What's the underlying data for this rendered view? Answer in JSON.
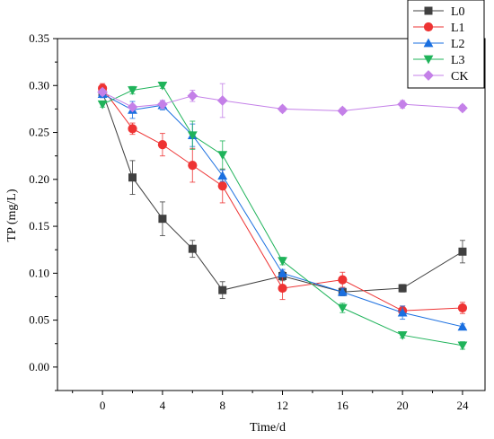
{
  "chart_data": {
    "type": "line",
    "xlabel": "Time/d",
    "ylabel": "TP (mg/L)",
    "x": [
      0,
      2,
      4,
      6,
      8,
      12,
      16,
      20,
      24
    ],
    "x_ticks": [
      "0",
      "4",
      "8",
      "12",
      "16",
      "20",
      "24"
    ],
    "y_ticks": [
      "0.00",
      "0.05",
      "0.10",
      "0.15",
      "0.20",
      "0.25",
      "0.30",
      "0.35"
    ],
    "xlim": [
      -3,
      25.5
    ],
    "ylim": [
      -0.025,
      0.35
    ],
    "grid": false,
    "legend_position": "top-right",
    "series": [
      {
        "name": "L0",
        "color": "#404040",
        "marker": "square",
        "values": [
          0.293,
          0.202,
          0.158,
          0.126,
          0.082,
          0.097,
          0.08,
          0.084,
          0.123
        ],
        "errors": [
          0.005,
          0.018,
          0.018,
          0.009,
          0.009,
          0.005,
          0.004,
          0.004,
          0.012
        ]
      },
      {
        "name": "L1",
        "color": "#ee3333",
        "marker": "circle",
        "values": [
          0.297,
          0.254,
          0.237,
          0.215,
          0.193,
          0.084,
          0.093,
          0.06,
          0.063
        ],
        "errors": [
          0.005,
          0.006,
          0.012,
          0.018,
          0.018,
          0.012,
          0.008,
          0.005,
          0.006
        ]
      },
      {
        "name": "L2",
        "color": "#1a6fe0",
        "marker": "triangle-up",
        "values": [
          0.291,
          0.274,
          0.279,
          0.247,
          0.204,
          0.1,
          0.08,
          0.058,
          0.043
        ],
        "errors": [
          0.004,
          0.009,
          0.005,
          0.012,
          0.006,
          0.004,
          0.004,
          0.007,
          0.003
        ]
      },
      {
        "name": "L3",
        "color": "#1fb35a",
        "marker": "triangle-down",
        "values": [
          0.28,
          0.295,
          0.3,
          0.247,
          0.226,
          0.113,
          0.063,
          0.034,
          0.023
        ],
        "errors": [
          0.003,
          0.004,
          0.003,
          0.015,
          0.015,
          0.004,
          0.005,
          0.003,
          0.004
        ]
      },
      {
        "name": "CK",
        "color": "#c480e8",
        "marker": "diamond",
        "values": [
          0.293,
          0.277,
          0.28,
          0.289,
          0.284,
          0.275,
          0.273,
          0.28,
          0.276
        ],
        "errors": [
          0.003,
          0.003,
          0.004,
          0.006,
          0.018,
          0.003,
          0.003,
          0.004,
          0.003
        ]
      }
    ]
  }
}
